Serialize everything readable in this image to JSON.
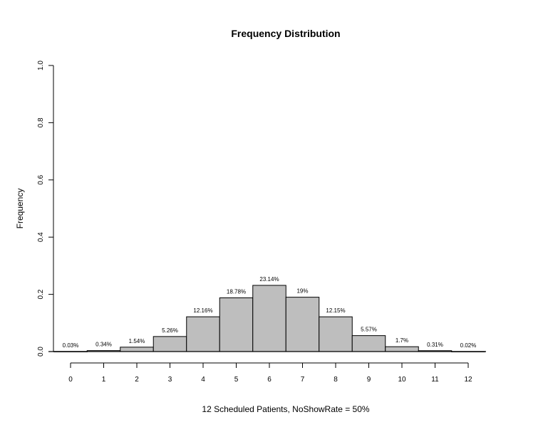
{
  "chart_data": {
    "type": "bar",
    "title": "Frequency Distribution",
    "xlabel": "12 Scheduled Patients,  NoShowRate = 50%",
    "ylabel": "Frequency",
    "categories": [
      "0",
      "1",
      "2",
      "3",
      "4",
      "5",
      "6",
      "7",
      "8",
      "9",
      "10",
      "11",
      "12"
    ],
    "values": [
      0.0003,
      0.0034,
      0.0154,
      0.0526,
      0.1216,
      0.1878,
      0.2314,
      0.19,
      0.1215,
      0.0557,
      0.017,
      0.0031,
      0.0002
    ],
    "data_labels": [
      "0.03%",
      "0.34%",
      "1.54%",
      "5.26%",
      "12.16%",
      "18.78%",
      "23.14%",
      "19%",
      "12.15%",
      "5.57%",
      "1.7%",
      "0.31%",
      "0.02%"
    ],
    "ylim": [
      0,
      1
    ],
    "yticks": [
      "0.0",
      "0.2",
      "0.4",
      "0.6",
      "0.8",
      "1.0"
    ],
    "grid": false,
    "bar_color": "#bebebe"
  }
}
